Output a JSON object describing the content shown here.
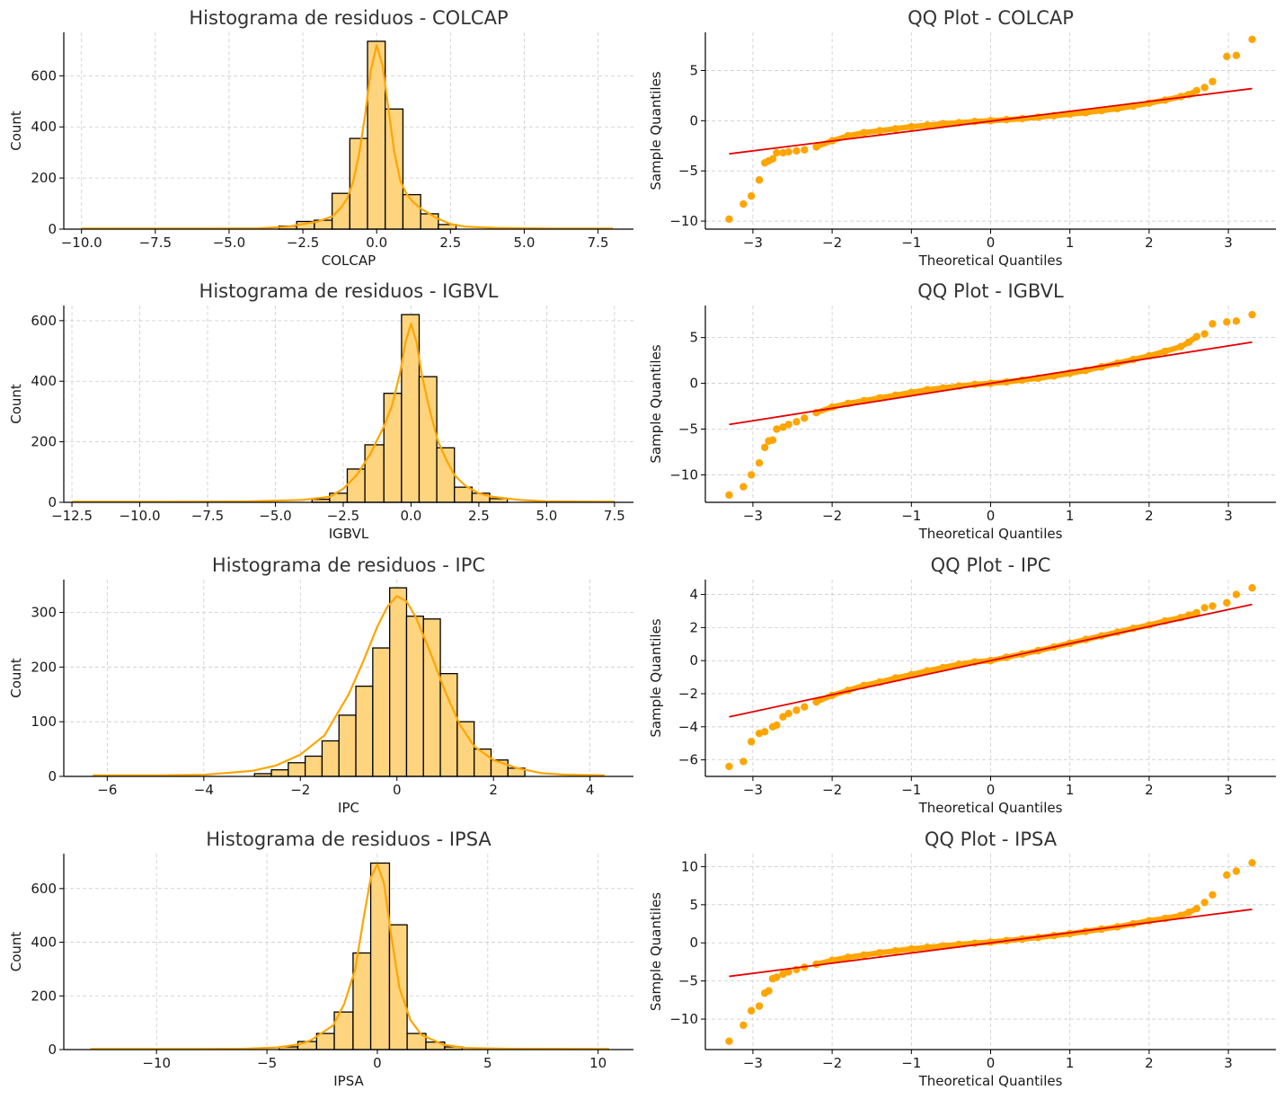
{
  "colors": {
    "hist_fill": "#FFD47F",
    "hist_edge": "#000000",
    "kde_line": "#FFA500",
    "qq_points": "#FFA500",
    "qq_line": "#E60000",
    "grid": "#cccccc"
  },
  "chart_data": [
    {
      "type": "bar",
      "kind": "histogram",
      "title": "Histograma de residuos - COLCAP",
      "xlabel": "COLCAP",
      "ylabel": "Count",
      "xlim": [
        -10.6,
        8.7
      ],
      "ylim": [
        0,
        770
      ],
      "xticks": [
        -10.0,
        -7.5,
        -5.0,
        -2.5,
        0.0,
        2.5,
        5.0,
        7.5
      ],
      "xtick_labels": [
        "−10.0",
        "−7.5",
        "−5.0",
        "−2.5",
        "0.0",
        "2.5",
        "5.0",
        "7.5"
      ],
      "yticks": [
        0,
        200,
        400,
        600
      ],
      "ytick_labels": [
        "0",
        "200",
        "400",
        "600"
      ],
      "grid": true,
      "bins": {
        "edges": [
          -3.31,
          -2.71,
          -2.11,
          -1.51,
          -0.91,
          -0.31,
          0.29,
          0.89,
          1.49,
          2.09,
          2.69
        ],
        "counts": [
          12,
          30,
          35,
          140,
          355,
          735,
          470,
          135,
          60,
          18
        ]
      },
      "kde": {
        "x": [
          -10.0,
          -6.0,
          -4.0,
          -3.0,
          -2.5,
          -2.0,
          -1.5,
          -1.2,
          -1.0,
          -0.8,
          -0.6,
          -0.4,
          -0.2,
          0.0,
          0.2,
          0.4,
          0.6,
          0.8,
          1.0,
          1.2,
          1.5,
          2.0,
          2.5,
          3.0,
          4.0,
          6.0,
          8.0
        ],
        "y": [
          2,
          2,
          3,
          10,
          20,
          30,
          50,
          85,
          120,
          185,
          290,
          440,
          620,
          720,
          640,
          470,
          300,
          190,
          140,
          110,
          80,
          45,
          20,
          10,
          5,
          2,
          2
        ]
      }
    },
    {
      "type": "scatter",
      "kind": "qq",
      "title": "QQ Plot - COLCAP",
      "xlabel": "Theoretical Quantiles",
      "ylabel": "Sample Quantiles",
      "xlim": [
        -3.6,
        3.6
      ],
      "ylim": [
        -10.8,
        8.8
      ],
      "xticks": [
        -3,
        -2,
        -1,
        0,
        1,
        2,
        3
      ],
      "xtick_labels": [
        "−3",
        "−2",
        "−1",
        "0",
        "1",
        "2",
        "3"
      ],
      "yticks": [
        -10,
        -5,
        0,
        5
      ],
      "ytick_labels": [
        "−10",
        "−5",
        "0",
        "5"
      ],
      "grid": true,
      "points": {
        "x": [
          -3.3,
          -3.12,
          -3.02,
          -2.92,
          -2.85,
          -2.8,
          -2.75,
          -2.7,
          -2.62,
          -2.55,
          -2.45,
          -2.35,
          -2.2,
          -2.0,
          -1.8,
          -1.6,
          -1.4,
          -1.2,
          -1.0,
          -0.8,
          -0.6,
          -0.4,
          -0.2,
          0.0,
          0.2,
          0.4,
          0.6,
          0.8,
          1.0,
          1.2,
          1.4,
          1.6,
          1.8,
          2.0,
          2.2,
          2.4,
          2.5,
          2.6,
          2.7,
          2.8,
          2.98,
          3.1,
          3.3
        ],
        "y": [
          -9.8,
          -8.3,
          -7.5,
          -5.9,
          -4.2,
          -4.0,
          -3.8,
          -3.2,
          -3.2,
          -3.1,
          -3.0,
          -2.9,
          -2.6,
          -2.0,
          -1.5,
          -1.2,
          -1.0,
          -0.8,
          -0.6,
          -0.45,
          -0.3,
          -0.2,
          -0.08,
          0.0,
          0.1,
          0.2,
          0.35,
          0.5,
          0.65,
          0.8,
          1.0,
          1.2,
          1.45,
          1.75,
          2.05,
          2.4,
          2.6,
          3.0,
          3.3,
          3.9,
          6.4,
          6.5,
          8.1
        ]
      },
      "fit_line": {
        "x": [
          -3.3,
          3.3
        ],
        "y": [
          -3.3,
          3.2
        ]
      }
    },
    {
      "type": "bar",
      "kind": "histogram",
      "title": "Histograma de residuos - IGBVL",
      "xlabel": "IGBVL",
      "ylabel": "Count",
      "xlim": [
        -12.8,
        8.2
      ],
      "ylim": [
        0,
        650
      ],
      "xticks": [
        -12.5,
        -10.0,
        -7.5,
        -5.0,
        -2.5,
        0.0,
        2.5,
        5.0,
        7.5
      ],
      "xtick_labels": [
        "−12.5",
        "−10.0",
        "−7.5",
        "−5.0",
        "−2.5",
        "0.0",
        "2.5",
        "5.0",
        "7.5"
      ],
      "yticks": [
        0,
        200,
        400,
        600
      ],
      "ytick_labels": [
        "0",
        "200",
        "400",
        "600"
      ],
      "grid": true,
      "bins": {
        "edges": [
          -3.65,
          -3.0,
          -2.35,
          -1.7,
          -1.0,
          -0.35,
          0.3,
          0.95,
          1.6,
          2.25,
          2.9,
          3.55
        ],
        "counts": [
          10,
          30,
          110,
          190,
          360,
          620,
          415,
          180,
          50,
          30,
          12
        ]
      },
      "kde": {
        "x": [
          -12.5,
          -9.0,
          -6.0,
          -4.0,
          -3.0,
          -2.5,
          -2.0,
          -1.5,
          -1.2,
          -1.0,
          -0.7,
          -0.4,
          -0.2,
          0.0,
          0.2,
          0.4,
          0.7,
          1.0,
          1.3,
          1.6,
          2.0,
          2.5,
          3.0,
          4.0,
          5.0,
          7.5
        ],
        "y": [
          2,
          2,
          3,
          8,
          18,
          45,
          90,
          160,
          215,
          250,
          320,
          430,
          530,
          590,
          530,
          420,
          300,
          200,
          140,
          90,
          55,
          30,
          18,
          8,
          3,
          2
        ]
      }
    },
    {
      "type": "scatter",
      "kind": "qq",
      "title": "QQ Plot - IGBVL",
      "xlabel": "Theoretical Quantiles",
      "ylabel": "Sample Quantiles",
      "xlim": [
        -3.6,
        3.6
      ],
      "ylim": [
        -13.0,
        8.5
      ],
      "xticks": [
        -3,
        -2,
        -1,
        0,
        1,
        2,
        3
      ],
      "xtick_labels": [
        "−3",
        "−2",
        "−1",
        "0",
        "1",
        "2",
        "3"
      ],
      "yticks": [
        -10,
        -5,
        0,
        5
      ],
      "ytick_labels": [
        "−10",
        "−5",
        "0",
        "5"
      ],
      "grid": true,
      "points": {
        "x": [
          -3.3,
          -3.12,
          -3.02,
          -2.92,
          -2.85,
          -2.8,
          -2.75,
          -2.7,
          -2.62,
          -2.55,
          -2.45,
          -2.35,
          -2.2,
          -2.0,
          -1.8,
          -1.6,
          -1.4,
          -1.2,
          -1.0,
          -0.8,
          -0.6,
          -0.4,
          -0.2,
          0.0,
          0.2,
          0.4,
          0.6,
          0.8,
          1.0,
          1.2,
          1.4,
          1.6,
          1.8,
          2.0,
          2.2,
          2.4,
          2.5,
          2.6,
          2.7,
          2.8,
          2.98,
          3.1,
          3.3
        ],
        "y": [
          -12.2,
          -11.3,
          -10.0,
          -8.7,
          -7.0,
          -6.3,
          -6.2,
          -5.0,
          -4.8,
          -4.5,
          -4.2,
          -3.8,
          -3.2,
          -2.6,
          -2.2,
          -1.9,
          -1.6,
          -1.3,
          -1.0,
          -0.7,
          -0.5,
          -0.3,
          -0.12,
          0.0,
          0.15,
          0.35,
          0.55,
          0.8,
          1.1,
          1.4,
          1.8,
          2.2,
          2.6,
          3.0,
          3.5,
          4.0,
          4.5,
          5.1,
          5.4,
          6.5,
          6.7,
          6.8,
          7.5
        ]
      },
      "fit_line": {
        "x": [
          -3.3,
          3.3
        ],
        "y": [
          -4.5,
          4.5
        ]
      }
    },
    {
      "type": "bar",
      "kind": "histogram",
      "title": "Histograma de residuos - IPC",
      "xlabel": "IPC",
      "ylabel": "Count",
      "xlim": [
        -6.9,
        4.9
      ],
      "ylim": [
        0,
        360
      ],
      "xticks": [
        -6,
        -4,
        -2,
        0,
        2,
        4
      ],
      "xtick_labels": [
        "−6",
        "−4",
        "−2",
        "0",
        "2",
        "4"
      ],
      "yticks": [
        0,
        100,
        200,
        300
      ],
      "ytick_labels": [
        "0",
        "100",
        "200",
        "300"
      ],
      "grid": true,
      "bins": {
        "edges": [
          -2.95,
          -2.6,
          -2.25,
          -1.9,
          -1.55,
          -1.2,
          -0.85,
          -0.5,
          -0.15,
          0.2,
          0.55,
          0.9,
          1.25,
          1.6,
          1.95,
          2.3,
          2.65
        ],
        "counts": [
          5,
          12,
          25,
          37,
          65,
          112,
          165,
          235,
          345,
          293,
          288,
          188,
          100,
          50,
          30,
          15
        ]
      },
      "kde": {
        "x": [
          -6.3,
          -5.0,
          -4.0,
          -3.0,
          -2.5,
          -2.0,
          -1.5,
          -1.0,
          -0.7,
          -0.4,
          -0.2,
          0.0,
          0.2,
          0.4,
          0.7,
          1.0,
          1.3,
          1.6,
          2.0,
          2.5,
          3.0,
          3.5,
          4.3
        ],
        "y": [
          2,
          2,
          3,
          10,
          20,
          40,
          75,
          150,
          210,
          275,
          310,
          330,
          320,
          290,
          225,
          155,
          95,
          55,
          30,
          15,
          6,
          3,
          2
        ]
      }
    },
    {
      "type": "scatter",
      "kind": "qq",
      "title": "QQ Plot - IPC",
      "xlabel": "Theoretical Quantiles",
      "ylabel": "Sample Quantiles",
      "xlim": [
        -3.6,
        3.6
      ],
      "ylim": [
        -7.0,
        4.9
      ],
      "xticks": [
        -3,
        -2,
        -1,
        0,
        1,
        2,
        3
      ],
      "xtick_labels": [
        "−3",
        "−2",
        "−1",
        "0",
        "1",
        "2",
        "3"
      ],
      "yticks": [
        -6,
        -4,
        -2,
        0,
        2,
        4
      ],
      "ytick_labels": [
        "−6",
        "−4",
        "−2",
        "0",
        "2",
        "4"
      ],
      "grid": true,
      "points": {
        "x": [
          -3.3,
          -3.12,
          -3.02,
          -2.92,
          -2.85,
          -2.75,
          -2.7,
          -2.62,
          -2.55,
          -2.45,
          -2.35,
          -2.2,
          -2.0,
          -1.8,
          -1.6,
          -1.4,
          -1.2,
          -1.0,
          -0.8,
          -0.6,
          -0.4,
          -0.2,
          0.0,
          0.2,
          0.4,
          0.6,
          0.8,
          1.0,
          1.2,
          1.4,
          1.6,
          1.8,
          2.0,
          2.2,
          2.4,
          2.5,
          2.6,
          2.7,
          2.8,
          2.98,
          3.1,
          3.3
        ],
        "y": [
          -6.4,
          -6.1,
          -4.9,
          -4.4,
          -4.3,
          -4.0,
          -3.9,
          -3.4,
          -3.2,
          -3.0,
          -2.8,
          -2.5,
          -2.1,
          -1.8,
          -1.5,
          -1.3,
          -1.05,
          -0.85,
          -0.62,
          -0.42,
          -0.22,
          -0.08,
          0.0,
          0.2,
          0.4,
          0.6,
          0.82,
          1.05,
          1.28,
          1.5,
          1.72,
          1.95,
          2.15,
          2.4,
          2.6,
          2.75,
          2.9,
          3.2,
          3.3,
          3.5,
          4.0,
          4.4
        ]
      },
      "fit_line": {
        "x": [
          -3.3,
          3.3
        ],
        "y": [
          -3.4,
          3.4
        ]
      }
    },
    {
      "type": "bar",
      "kind": "histogram",
      "title": "Histograma de residuos - IPSA",
      "xlabel": "IPSA",
      "ylabel": "Count",
      "xlim": [
        -14.2,
        11.6
      ],
      "ylim": [
        0,
        730
      ],
      "xticks": [
        -10,
        -5,
        0,
        5,
        10
      ],
      "xtick_labels": [
        "−10",
        "−5",
        "0",
        "5",
        "10"
      ],
      "yticks": [
        0,
        200,
        400,
        600
      ],
      "ytick_labels": [
        "0",
        "200",
        "400",
        "600"
      ],
      "grid": true,
      "bins": {
        "edges": [
          -4.45,
          -3.6,
          -2.75,
          -1.95,
          -1.1,
          -0.3,
          0.55,
          1.35,
          2.2,
          3.05,
          3.85
        ],
        "counts": [
          10,
          30,
          60,
          140,
          360,
          695,
          465,
          60,
          28,
          10
        ]
      },
      "kde": {
        "x": [
          -13.0,
          -8.0,
          -6.0,
          -4.5,
          -3.5,
          -3.0,
          -2.0,
          -1.5,
          -1.0,
          -0.6,
          -0.3,
          0.0,
          0.3,
          0.6,
          1.0,
          1.5,
          2.0,
          3.0,
          4.0,
          6.0,
          10.5
        ],
        "y": [
          2,
          2,
          3,
          8,
          20,
          35,
          90,
          170,
          300,
          500,
          640,
          690,
          620,
          440,
          230,
          110,
          55,
          18,
          6,
          3,
          2
        ]
      }
    },
    {
      "type": "scatter",
      "kind": "qq",
      "title": "QQ Plot - IPSA",
      "xlabel": "Theoretical Quantiles",
      "ylabel": "Sample Quantiles",
      "xlim": [
        -3.6,
        3.6
      ],
      "ylim": [
        -14.0,
        11.7
      ],
      "xticks": [
        -3,
        -2,
        -1,
        0,
        1,
        2,
        3
      ],
      "xtick_labels": [
        "−3",
        "−2",
        "−1",
        "0",
        "1",
        "2",
        "3"
      ],
      "yticks": [
        -10,
        -5,
        0,
        5,
        10
      ],
      "ytick_labels": [
        "−10",
        "−5",
        "0",
        "5",
        "10"
      ],
      "grid": true,
      "points": {
        "x": [
          -3.3,
          -3.12,
          -3.02,
          -2.92,
          -2.85,
          -2.8,
          -2.75,
          -2.7,
          -2.62,
          -2.55,
          -2.45,
          -2.35,
          -2.2,
          -2.0,
          -1.8,
          -1.6,
          -1.4,
          -1.2,
          -1.0,
          -0.8,
          -0.6,
          -0.4,
          -0.2,
          0.0,
          0.2,
          0.4,
          0.6,
          0.8,
          1.0,
          1.2,
          1.4,
          1.6,
          1.8,
          2.0,
          2.2,
          2.4,
          2.5,
          2.6,
          2.7,
          2.8,
          2.98,
          3.1,
          3.3
        ],
        "y": [
          -12.9,
          -10.8,
          -8.9,
          -8.3,
          -6.6,
          -6.3,
          -4.7,
          -4.5,
          -4.1,
          -3.8,
          -3.5,
          -3.2,
          -2.8,
          -2.3,
          -1.9,
          -1.6,
          -1.3,
          -1.05,
          -0.8,
          -0.6,
          -0.4,
          -0.2,
          -0.05,
          0.1,
          0.3,
          0.5,
          0.7,
          0.95,
          1.2,
          1.5,
          1.8,
          2.1,
          2.5,
          2.9,
          3.2,
          3.6,
          4.0,
          4.5,
          5.3,
          6.3,
          8.9,
          9.4,
          10.5
        ]
      },
      "fit_line": {
        "x": [
          -3.3,
          3.3
        ],
        "y": [
          -4.4,
          4.4
        ]
      }
    }
  ]
}
